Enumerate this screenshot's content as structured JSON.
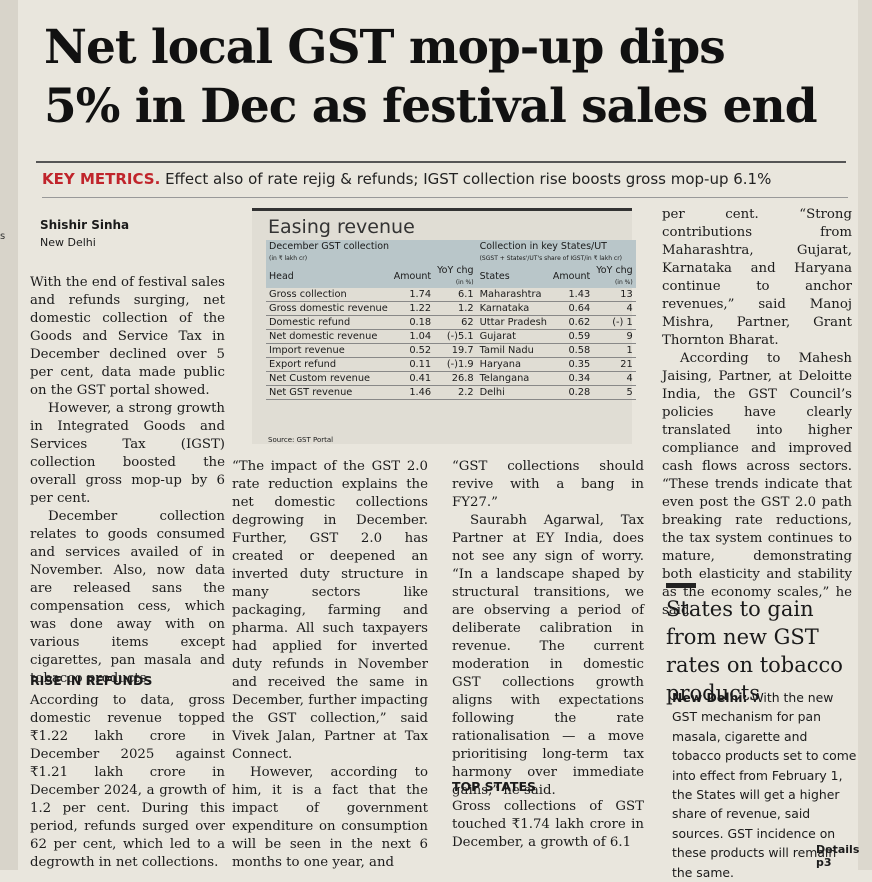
{
  "headline": [
    "Net local GST mop-up dips",
    "5% in Dec as festival sales end"
  ],
  "key_metrics": {
    "label": "KEY METRICS.",
    "text": "Effect also of rate rejig & refunds; IGST collection rise boosts gross mop-up 6.1%"
  },
  "byline": "Shishir Sinha",
  "dateline": "New Delhi",
  "edge_text": "s",
  "col1": [
    "With the end of festival sales and refunds surging, net domestic collection of the Goods and Service Tax in December declined over 5 per cent, data made public on the GST portal showed.",
    "However, a strong growth in Integrated Goods and Services Tax (IGST) collection boosted the overall gross mop-up by 6 per cent.",
    "December collection relates to goods consumed and services availed of in November. Also, now data are released sans the compensation cess, which was done away with on various items except cigarettes, pan masala and tobacco products."
  ],
  "subhead1": "RISE IN REFUNDS",
  "col1b": "According to data, gross domestic revenue topped ₹1.22 lakh crore in December 2025 against ₹1.21 lakh crore in December 2024, a growth of 1.2 per cent. During this period, refunds surged over 62 per cent, which led to a degrowth in net collections.",
  "col2": [
    "“The impact of the GST 2.0 rate reduction explains the net domestic collections degrowing in December. Further, GST 2.0 has created or deepened an inverted duty structure in many sectors like packaging, farming and pharma. All such taxpayers had applied for inverted duty refunds in November and received the same in December, further impacting the GST collection,” said Vivek Jalan, Partner at Tax Connect.",
    "However, according to him, it is a fact that the impact of government expenditure on consumption will be seen in the next 6 months to one year, and"
  ],
  "col3": [
    "“GST collections should revive with a bang in FY27.”",
    "Saurabh Agarwal, Tax Partner at EY India, does not see any sign of worry. “In a landscape shaped by structural transitions, we are observing a period of deliberate calibration in revenue. The current moderation in domestic GST collections growth aligns with expectations following the rate rationalisation — a move prioritising long-term tax harmony over immediate gains,” he said."
  ],
  "subhead2": "TOP STATES",
  "col3b": "Gross collections of GST touched ₹1.74 lakh crore in December, a growth of 6.1",
  "col4": [
    "per cent. “Strong contributions from Maharashtra, Gujarat, Karnataka and Haryana continue to anchor revenues,” said Manoj Mishra, Partner, Grant Thornton Bharat.",
    "According to Mahesh Jaising, Partner, at Deloitte India, the GST Council’s policies have clearly translated into higher compliance and improved cash flows across sectors. “These trends indicate that even post the GST 2.0 path breaking rate reductions, the tax system continues to mature, demonstrating both elasticity and stability as the economy scales,” he said."
  ],
  "sidebar": {
    "headline": "States to gain from new GST rates on tobacco products",
    "lead": "New Delhi:",
    "body": "With the new GST mechanism for pan masala, cigarette and tobacco products set to come into effect from February 1, the States will get a higher share of revenue, said sources. GST incidence on these products will remain the same.",
    "details": "Details p3"
  },
  "table": {
    "title": "Easing revenue",
    "left_caption": "December GST collection",
    "left_unit": "(in ₹ lakh cr)",
    "right_caption": "Collection in key States/UT",
    "right_unit": "(SGST + States'/UT's share of IGST/in ₹ lakh cr)",
    "col_head": "Head",
    "col_amount": "Amount",
    "col_yoy": "YoY chg",
    "col_pct": "(in %)",
    "col_states": "States",
    "col_amount2": "Amount",
    "col_yoy2": "YoY chg",
    "col_pct2": "(in %)",
    "rows": [
      [
        "Gross collection",
        "1.74",
        "6.1",
        "Maharashtra",
        "1.43",
        "13"
      ],
      [
        "Gross domestic revenue",
        "1.22",
        "1.2",
        "Karnataka",
        "0.64",
        "4"
      ],
      [
        "Domestic refund",
        "0.18",
        "62",
        "Uttar Pradesh",
        "0.62",
        "(-) 1"
      ],
      [
        "Net domestic revenue",
        "1.04",
        "(-)5.1",
        "Gujarat",
        "0.59",
        "9"
      ],
      [
        "Import revenue",
        "0.52",
        "19.7",
        "Tamil Nadu",
        "0.58",
        "1"
      ],
      [
        "Export refund",
        "0.11",
        "(-)1.9",
        "Haryana",
        "0.35",
        "21"
      ],
      [
        "Net Custom revenue",
        "0.41",
        "26.8",
        "Telangana",
        "0.34",
        "4"
      ],
      [
        "Net GST revenue",
        "1.46",
        "2.2",
        "Delhi",
        "0.28",
        "5"
      ]
    ],
    "source": "Source: GST Portal"
  }
}
